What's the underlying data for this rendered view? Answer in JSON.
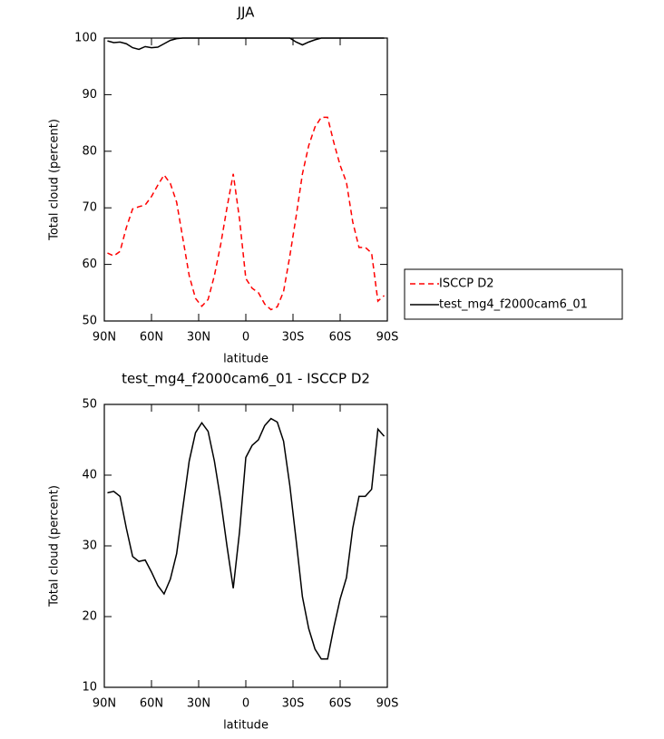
{
  "chart_data": [
    {
      "type": "line",
      "title": "JJA",
      "xlabel": "latitude",
      "ylabel": "Total cloud (percent)",
      "x": [
        88,
        84,
        80,
        76,
        72,
        68,
        64,
        60,
        56,
        52,
        48,
        44,
        40,
        36,
        32,
        28,
        24,
        20,
        16,
        12,
        8,
        4,
        0,
        -4,
        -8,
        -12,
        -16,
        -20,
        -24,
        -28,
        -32,
        -36,
        -40,
        -44,
        -48,
        -52,
        -56,
        -60,
        -64,
        -68,
        -72,
        -76,
        -80,
        -84,
        -88
      ],
      "xlim": [
        90,
        -90
      ],
      "xticks": [
        {
          "value": 90,
          "label": "90N"
        },
        {
          "value": 60,
          "label": "60N"
        },
        {
          "value": 30,
          "label": "30N"
        },
        0,
        {
          "value": -30,
          "label": "30S"
        },
        {
          "value": -60,
          "label": "60S"
        },
        {
          "value": -90,
          "label": "90S"
        }
      ],
      "ylim": [
        50,
        100
      ],
      "yticks": [
        50,
        60,
        70,
        80,
        90,
        100
      ],
      "legend": "right",
      "series": [
        {
          "name": "ISCCP D2",
          "color": "#ff0000",
          "linestyle": "dashed",
          "values": [
            62,
            61.5,
            62.3,
            66.5,
            69.8,
            70.2,
            70.5,
            72,
            74,
            75.8,
            74.3,
            71,
            64.5,
            58,
            54,
            52.6,
            53.8,
            58,
            63.5,
            70,
            76,
            68,
            57.5,
            55.8,
            55,
            53,
            52,
            52.5,
            55.2,
            61.5,
            68.5,
            76,
            81,
            84.3,
            86,
            86,
            81.5,
            77.5,
            74.5,
            67.5,
            63,
            63,
            62,
            53.5,
            54.5
          ]
        },
        {
          "name": "test_mg4_f2000cam6_01",
          "color": "#000000",
          "linestyle": "solid",
          "values": [
            99.5,
            99.2,
            99.3,
            99,
            98.3,
            98,
            98.5,
            98.3,
            98.4,
            99,
            99.6,
            99.9,
            100,
            100,
            100,
            100,
            100,
            100,
            100,
            100,
            100,
            100,
            100,
            100,
            100,
            100,
            100,
            100,
            100,
            100,
            99.3,
            98.8,
            99.3,
            99.7,
            100,
            100,
            100,
            100,
            100,
            100,
            100,
            100,
            100,
            100,
            100
          ]
        }
      ]
    },
    {
      "type": "line",
      "title": "test_mg4_f2000cam6_01 - ISCCP D2",
      "xlabel": "latitude",
      "ylabel": "Total cloud (percent)",
      "x": [
        88,
        84,
        80,
        76,
        72,
        68,
        64,
        60,
        56,
        52,
        48,
        44,
        40,
        36,
        32,
        28,
        24,
        20,
        16,
        12,
        8,
        4,
        0,
        -4,
        -8,
        -12,
        -16,
        -20,
        -24,
        -28,
        -32,
        -36,
        -40,
        -44,
        -48,
        -52,
        -56,
        -60,
        -64,
        -68,
        -72,
        -76,
        -80,
        -84,
        -88
      ],
      "xlim": [
        90,
        -90
      ],
      "xticks": [
        {
          "value": 90,
          "label": "90N"
        },
        {
          "value": 60,
          "label": "60N"
        },
        {
          "value": 30,
          "label": "30N"
        },
        0,
        {
          "value": -30,
          "label": "30S"
        },
        {
          "value": -60,
          "label": "60S"
        },
        {
          "value": -90,
          "label": "90S"
        }
      ],
      "ylim": [
        10,
        50
      ],
      "yticks": [
        10,
        20,
        30,
        40,
        50
      ],
      "series": [
        {
          "color": "#000000",
          "linestyle": "solid",
          "values": [
            37.5,
            37.7,
            37,
            32.5,
            28.5,
            27.8,
            28,
            26.3,
            24.4,
            23.2,
            25.3,
            28.9,
            35.5,
            42,
            46,
            47.4,
            46.2,
            42,
            36.5,
            30,
            24,
            32,
            42.5,
            44.2,
            45,
            47,
            48,
            47.5,
            44.8,
            38.5,
            30.8,
            22.8,
            18.3,
            15.4,
            14,
            14,
            18.5,
            22.5,
            25.5,
            32.5,
            37,
            37,
            38,
            46.5,
            45.5
          ]
        }
      ]
    }
  ]
}
